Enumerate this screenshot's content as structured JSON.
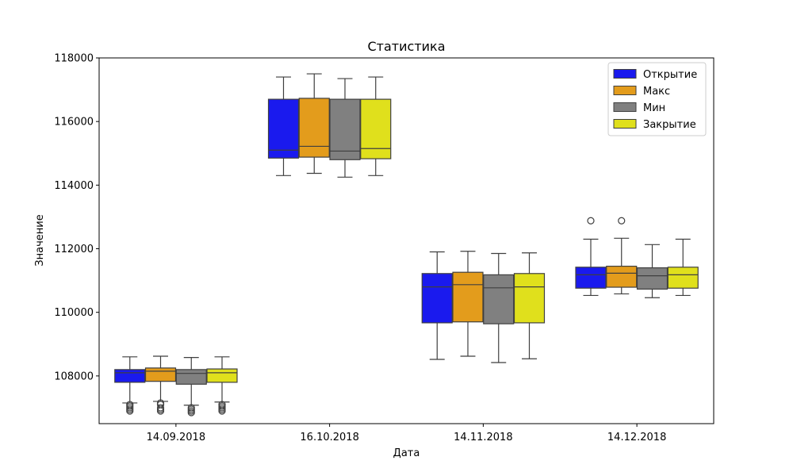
{
  "chart_data": {
    "type": "boxplot",
    "title": "Статистика",
    "xlabel": "Дата",
    "ylabel": "Значение",
    "ylim": [
      106500,
      118000
    ],
    "yticks": [
      108000,
      110000,
      112000,
      114000,
      116000,
      118000
    ],
    "categories": [
      "14.09.2018",
      "16.10.2018",
      "14.11.2018",
      "14.12.2018"
    ],
    "legend_position": "top-right",
    "series": [
      {
        "name": "Открытие",
        "color": "#1a1aee",
        "boxes": [
          {
            "whisker_low": 107150,
            "q1": 107800,
            "median": 108100,
            "q3": 108200,
            "whisker_high": 108600,
            "outliers": [
              107000,
              106950,
              106900,
              107050,
              107100
            ]
          },
          {
            "whisker_low": 114300,
            "q1": 114850,
            "median": 115100,
            "q3": 116700,
            "whisker_high": 117400,
            "outliers": []
          },
          {
            "whisker_low": 108520,
            "q1": 109670,
            "median": 110800,
            "q3": 111220,
            "whisker_high": 111900,
            "outliers": []
          },
          {
            "whisker_low": 110530,
            "q1": 110760,
            "median": 111180,
            "q3": 111420,
            "whisker_high": 112300,
            "outliers": [
              112880
            ]
          }
        ]
      },
      {
        "name": "Макс",
        "color": "#e39c1c",
        "boxes": [
          {
            "whisker_low": 107200,
            "q1": 107830,
            "median": 108150,
            "q3": 108250,
            "whisker_high": 108620,
            "outliers": [
              107000,
              106950,
              106900,
              107100,
              107150
            ]
          },
          {
            "whisker_low": 114370,
            "q1": 114880,
            "median": 115220,
            "q3": 116730,
            "whisker_high": 117500,
            "outliers": []
          },
          {
            "whisker_low": 108620,
            "q1": 109700,
            "median": 110870,
            "q3": 111260,
            "whisker_high": 111920,
            "outliers": []
          },
          {
            "whisker_low": 110580,
            "q1": 110790,
            "median": 111230,
            "q3": 111450,
            "whisker_high": 112330,
            "outliers": [
              112880
            ]
          }
        ]
      },
      {
        "name": "Мин",
        "color": "#808080",
        "boxes": [
          {
            "whisker_low": 107080,
            "q1": 107740,
            "median": 108080,
            "q3": 108200,
            "whisker_high": 108580,
            "outliers": [
              106950,
              106900,
              106850,
              107000
            ]
          },
          {
            "whisker_low": 114250,
            "q1": 114800,
            "median": 115070,
            "q3": 116700,
            "whisker_high": 117350,
            "outliers": []
          },
          {
            "whisker_low": 108420,
            "q1": 109640,
            "median": 110770,
            "q3": 111180,
            "whisker_high": 111850,
            "outliers": []
          },
          {
            "whisker_low": 110460,
            "q1": 110730,
            "median": 111150,
            "q3": 111400,
            "whisker_high": 112130,
            "outliers": []
          }
        ]
      },
      {
        "name": "Закрытие",
        "color": "#e0e01c",
        "boxes": [
          {
            "whisker_low": 107180,
            "q1": 107800,
            "median": 108100,
            "q3": 108220,
            "whisker_high": 108600,
            "outliers": [
              107000,
              106950,
              106900,
              107050,
              107100
            ]
          },
          {
            "whisker_low": 114300,
            "q1": 114830,
            "median": 115150,
            "q3": 116700,
            "whisker_high": 117400,
            "outliers": []
          },
          {
            "whisker_low": 108540,
            "q1": 109670,
            "median": 110800,
            "q3": 111220,
            "whisker_high": 111870,
            "outliers": []
          },
          {
            "whisker_low": 110530,
            "q1": 110760,
            "median": 111180,
            "q3": 111420,
            "whisker_high": 112300,
            "outliers": []
          }
        ]
      }
    ]
  }
}
